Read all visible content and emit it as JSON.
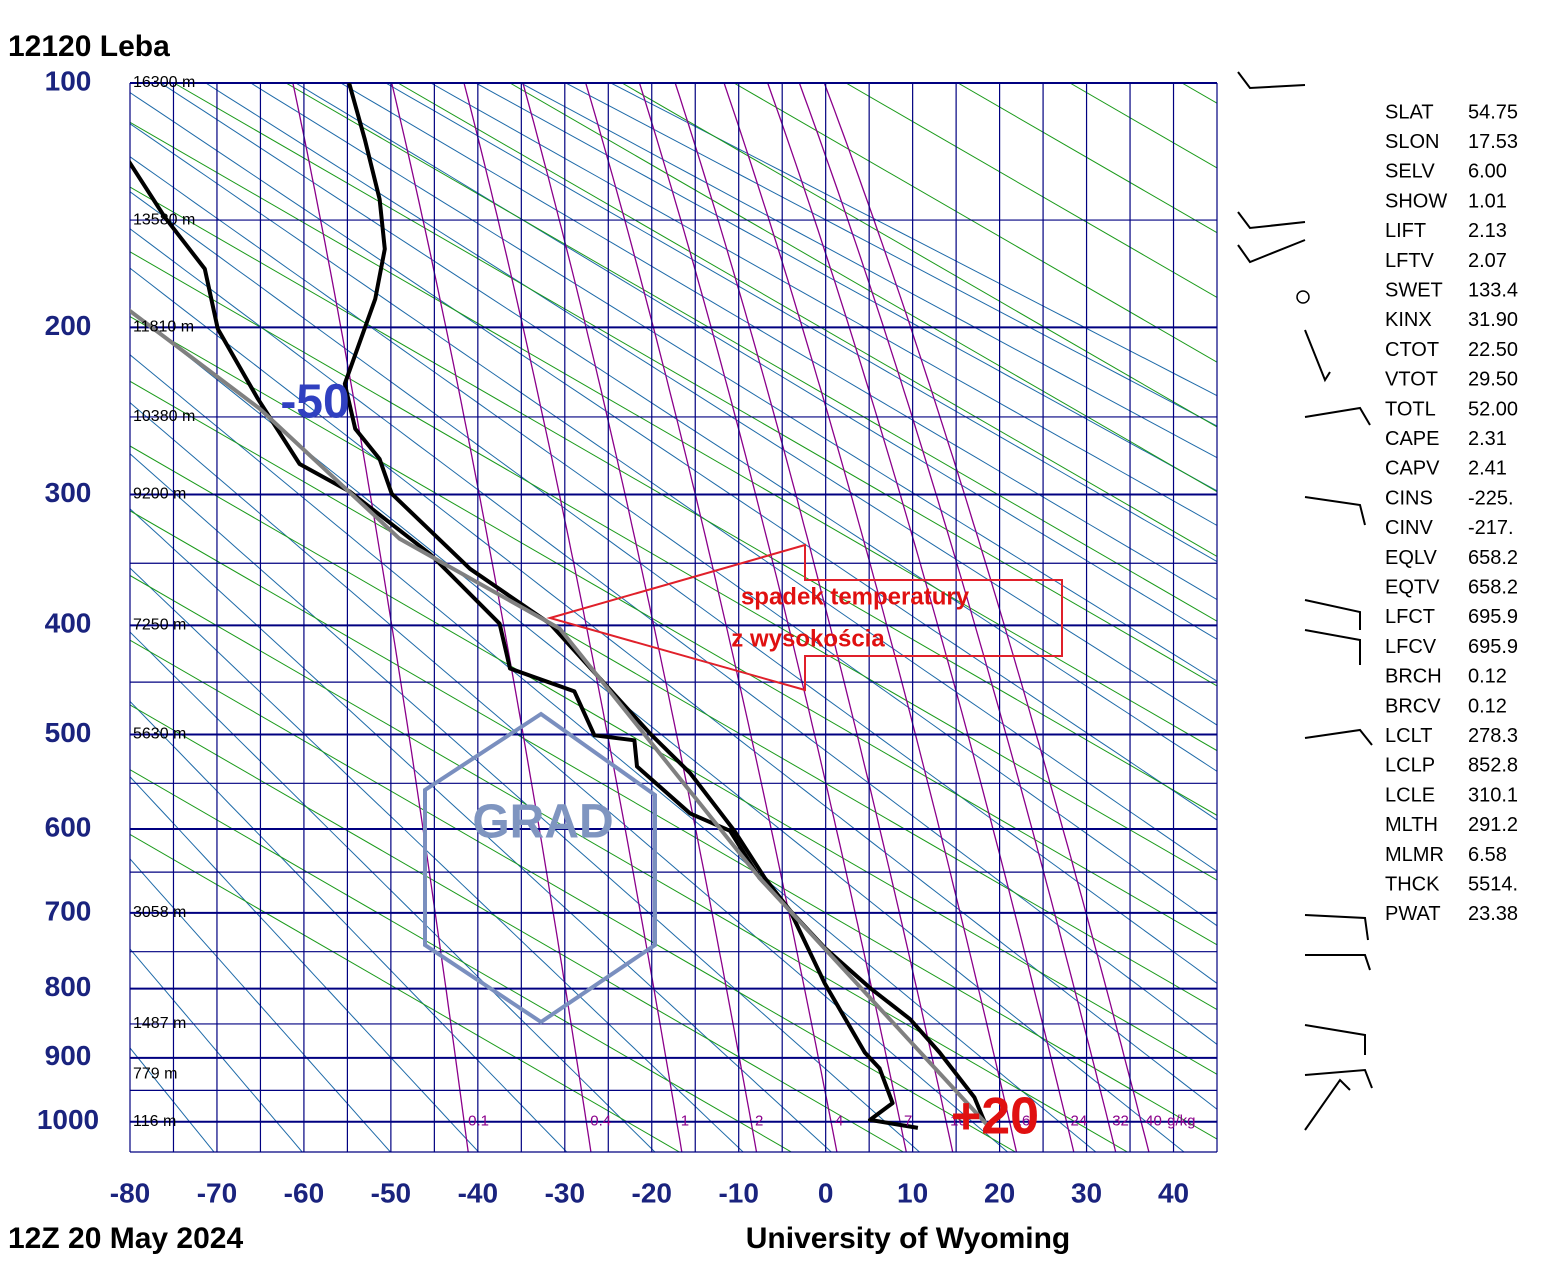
{
  "chart_data": {
    "type": "line",
    "title": "12120  Leba",
    "date": "12Z 20 May 2024",
    "source": "University of Wyoming",
    "xlim": [
      -80,
      45
    ],
    "xticks": [
      -80,
      -70,
      -60,
      -50,
      -40,
      -30,
      -20,
      -10,
      0,
      10,
      20,
      30,
      40
    ],
    "x_minor_ticks": [
      -75,
      -65,
      -55,
      -45,
      -35,
      -25,
      -15,
      -5,
      5,
      15,
      25,
      35,
      45
    ],
    "ylim": [
      100,
      1050
    ],
    "yticks": [
      100,
      200,
      300,
      400,
      500,
      600,
      700,
      800,
      900,
      1000
    ],
    "y_minor_ticks": [
      150,
      250,
      350,
      450,
      550,
      650,
      750,
      850,
      950,
      1050
    ],
    "height_labels": [
      {
        "value": 100,
        "label": "16300 m"
      },
      {
        "value": 150,
        "label": "13580 m"
      },
      {
        "value": 200,
        "label": "11810 m"
      },
      {
        "value": 250,
        "label": "10380 m"
      },
      {
        "value": 300,
        "label": "9200 m"
      },
      {
        "value": 400,
        "label": "7250 m"
      },
      {
        "value": 500,
        "label": "5630 m"
      },
      {
        "value": 700,
        "label": "3058 m"
      },
      {
        "value": 850,
        "label": "1487 m"
      },
      {
        "value": 925,
        "label": "779 m"
      },
      {
        "value": 1000,
        "label": "116 m"
      }
    ],
    "mixing_ratio_labels": [
      0.1,
      0.4,
      1,
      2,
      4,
      7,
      10,
      16,
      24,
      32,
      40
    ],
    "mixing_ratio_unit": "g/kg",
    "grid": true,
    "series": [
      {
        "color": "#000000",
        "x": [
          -54.8,
          -53.0,
          -51.3,
          -50.7,
          -51.8,
          -55.3,
          -54.1,
          -51.3,
          -49.9,
          -40.9,
          -31.7,
          -20.2,
          -15.6,
          -10.5,
          -7.0,
          -4.1,
          -0.1,
          5.1,
          9.7,
          13.1,
          17.1,
          18.3
        ],
        "values": [
          100,
          118.8,
          141.4,
          162.5,
          185.8,
          230.6,
          257.2,
          276.3,
          299.5,
          354.3,
          398.6,
          499,
          539,
          602,
          657,
          697,
          745,
          799,
          843,
          892,
          961,
          1001
        ]
      },
      {
        "color": "#000000",
        "x": [
          -80.3,
          -76.0,
          -71.4,
          -69.9,
          -65.3,
          -60.5,
          -54.7,
          -45.5,
          -37.5,
          -36.3,
          -28.9,
          -26.6,
          -22.0,
          -21.7,
          -15.6,
          -11.0,
          -7.6,
          -4.1,
          -0.1,
          4.5,
          6.2,
          7.7,
          5.1,
          10.6
        ],
        "values": [
          126.0,
          148.8,
          171.5,
          200.8,
          239.2,
          279.6,
          298.2,
          342.9,
          398.6,
          437.6,
          458.6,
          500.8,
          505.7,
          532.4,
          582.5,
          602,
          657,
          697,
          793,
          892,
          916,
          970,
          997,
          1010
        ]
      },
      {
        "color": "#808080",
        "x": [
          -80.3,
          -65.1,
          -49.0,
          -30.6,
          -7.6,
          18.9
        ],
        "values": [
          190.7,
          245,
          331.6,
          402.7,
          657,
          1010
        ]
      }
    ],
    "annotations": {
      "cold": "-50",
      "warm": "+20",
      "arrow_line1": "spadek temperatury",
      "arrow_line2": "z wysokościa",
      "hexagon": "GRAD"
    },
    "indices": [
      [
        "SLAT",
        "54.75"
      ],
      [
        "SLON",
        "17.53"
      ],
      [
        "SELV",
        "6.00"
      ],
      [
        "SHOW",
        "1.01"
      ],
      [
        "LIFT",
        "2.13"
      ],
      [
        "LFTV",
        "2.07"
      ],
      [
        "SWET",
        "133.4"
      ],
      [
        "KINX",
        "31.90"
      ],
      [
        "CTOT",
        "22.50"
      ],
      [
        "VTOT",
        "29.50"
      ],
      [
        "TOTL",
        "52.00"
      ],
      [
        "CAPE",
        "2.31"
      ],
      [
        "CAPV",
        "2.41"
      ],
      [
        "CINS",
        "-225."
      ],
      [
        "CINV",
        "-217."
      ],
      [
        "EQLV",
        "658.2"
      ],
      [
        "EQTV",
        "658.2"
      ],
      [
        "LFCT",
        "695.9"
      ],
      [
        "LFCV",
        "695.9"
      ],
      [
        "BRCH",
        "0.12"
      ],
      [
        "BRCV",
        "0.12"
      ],
      [
        "LCLT",
        "278.3"
      ],
      [
        "LCLP",
        "852.8"
      ],
      [
        "LCLE",
        "310.1"
      ],
      [
        "MLTH",
        "291.2"
      ],
      [
        "MLMR",
        "6.58"
      ],
      [
        "THCK",
        "5514."
      ],
      [
        "PWAT",
        "23.38"
      ]
    ]
  }
}
